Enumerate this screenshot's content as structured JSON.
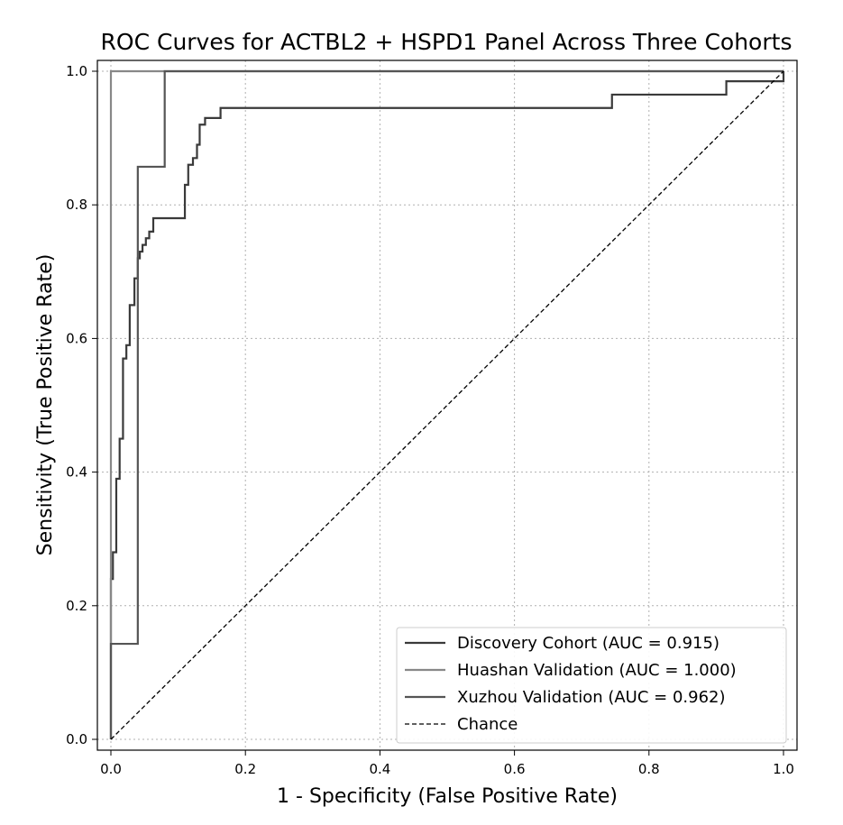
{
  "chart_data": {
    "type": "line",
    "title": "ROC Curves for ACTBL2 + HSPD1 Panel Across Three Cohorts",
    "xlabel": "1 - Specificity (False Positive Rate)",
    "ylabel": "Sensitivity (True Positive Rate)",
    "xlim": [
      0,
      1
    ],
    "ylim": [
      0,
      1
    ],
    "xticks": [
      "0.0",
      "0.2",
      "0.4",
      "0.6",
      "0.8",
      "1.0"
    ],
    "yticks": [
      "0.0",
      "0.2",
      "0.4",
      "0.6",
      "0.8",
      "1.0"
    ],
    "grid": true,
    "legend_position": "lower-right",
    "series": [
      {
        "name": "Discovery Cohort (AUC = 0.915)",
        "color": "#3a3a3a",
        "style": "solid",
        "x": [
          0,
          0,
          0.003,
          0.003,
          0.008,
          0.008,
          0.013,
          0.013,
          0.018,
          0.018,
          0.023,
          0.023,
          0.028,
          0.028,
          0.035,
          0.035,
          0.04,
          0.04,
          0.043,
          0.043,
          0.047,
          0.047,
          0.052,
          0.052,
          0.057,
          0.057,
          0.063,
          0.063,
          0.072,
          0.072,
          0.11,
          0.11,
          0.115,
          0.115,
          0.122,
          0.122,
          0.128,
          0.128,
          0.132,
          0.132,
          0.14,
          0.14,
          0.163,
          0.163,
          0.745,
          0.745,
          0.915,
          0.915,
          0.99,
          0.99,
          1.0,
          1.0
        ],
        "y": [
          0,
          0.24,
          0.24,
          0.28,
          0.28,
          0.39,
          0.39,
          0.45,
          0.45,
          0.57,
          0.57,
          0.59,
          0.59,
          0.65,
          0.65,
          0.69,
          0.69,
          0.72,
          0.72,
          0.73,
          0.73,
          0.74,
          0.74,
          0.75,
          0.75,
          0.76,
          0.76,
          0.78,
          0.78,
          0.78,
          0.78,
          0.83,
          0.83,
          0.86,
          0.86,
          0.87,
          0.87,
          0.89,
          0.89,
          0.92,
          0.92,
          0.93,
          0.93,
          0.945,
          0.945,
          0.965,
          0.965,
          0.985,
          0.985,
          0.985,
          0.985,
          1.0
        ]
      },
      {
        "name": "Huashan Validation (AUC = 1.000)",
        "color": "#888888",
        "style": "solid",
        "x": [
          0,
          0,
          1.0
        ],
        "y": [
          0,
          1.0,
          1.0
        ]
      },
      {
        "name": "Xuzhou Validation (AUC = 0.962)",
        "color": "#555555",
        "style": "solid",
        "x": [
          0,
          0,
          0.04,
          0.04,
          0.08,
          0.08,
          1.0
        ],
        "y": [
          0,
          0.143,
          0.143,
          0.857,
          0.857,
          1.0,
          1.0
        ]
      },
      {
        "name": "Chance",
        "color": "#000000",
        "style": "dashed",
        "x": [
          0,
          1
        ],
        "y": [
          0,
          1
        ]
      }
    ]
  }
}
